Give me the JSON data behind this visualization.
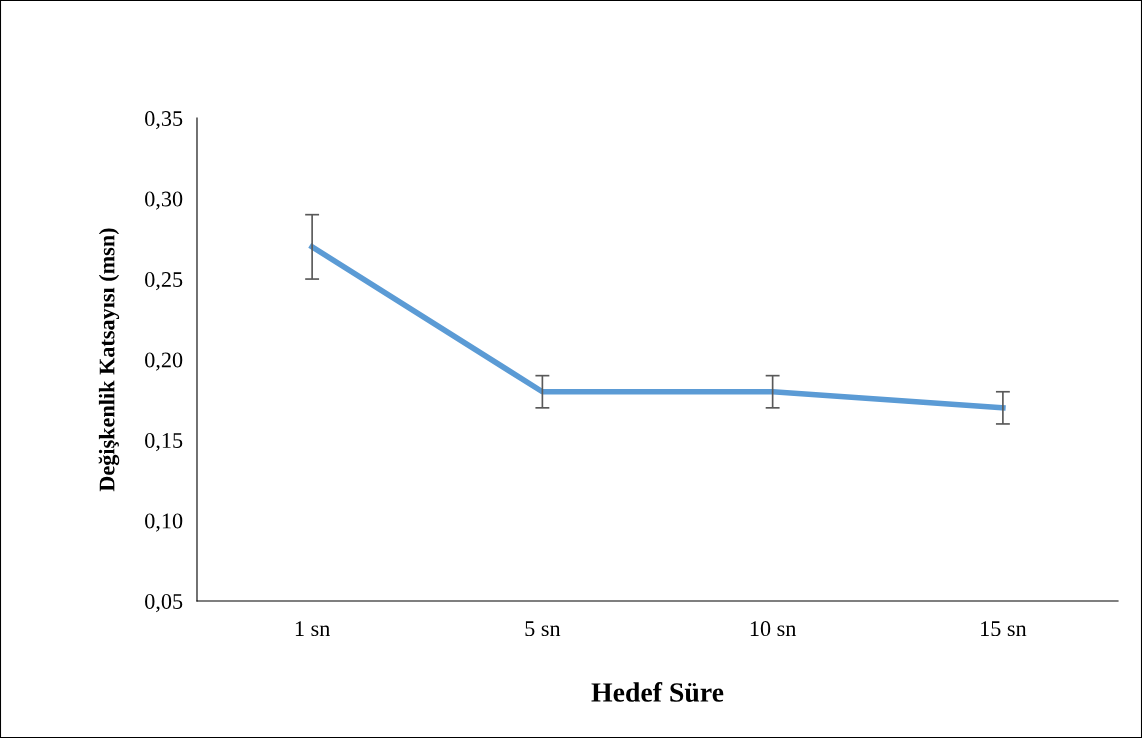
{
  "chart_data": {
    "type": "line",
    "xlabel": "Hedef Süre",
    "ylabel": "Değişkenlik Katsayısı (msn)",
    "categories": [
      "1 sn",
      "5 sn",
      "10 sn",
      "15 sn"
    ],
    "series": [
      {
        "color": "#5b9bd5",
        "values": [
          0.27,
          0.18,
          0.18,
          0.17
        ],
        "errors": [
          0.02,
          0.01,
          0.01,
          0.01
        ]
      }
    ],
    "ylim": [
      0.05,
      0.35
    ],
    "yticks": [
      {
        "value": 0.05,
        "label": "0,05"
      },
      {
        "value": 0.1,
        "label": "0,10"
      },
      {
        "value": 0.15,
        "label": "0,15"
      },
      {
        "value": 0.2,
        "label": "0,20"
      },
      {
        "value": 0.25,
        "label": "0,25"
      },
      {
        "value": 0.3,
        "label": "0,30"
      },
      {
        "value": 0.35,
        "label": "0,35"
      }
    ],
    "grid": false,
    "legend": false,
    "marker": "none",
    "line_style": "solid"
  }
}
